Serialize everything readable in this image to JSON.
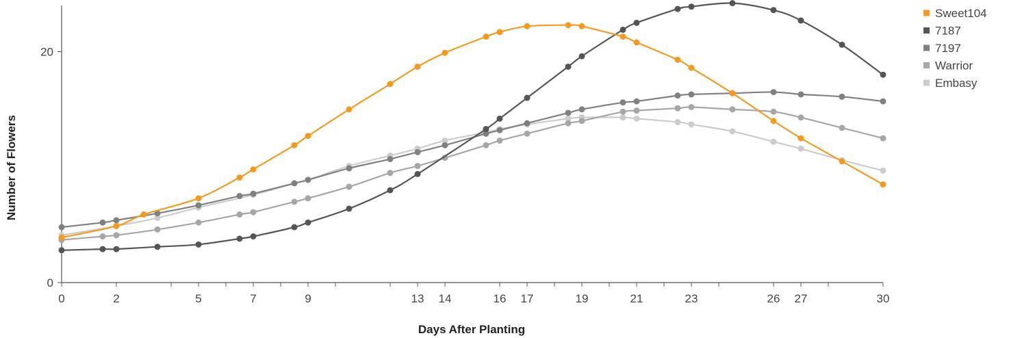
{
  "chart_data": {
    "type": "line",
    "title": "",
    "xlabel": "Days After Planting",
    "ylabel": "Number of Flowers",
    "xlim": [
      0,
      30
    ],
    "ylim": [
      0,
      24
    ],
    "x_tick_labels": [
      "0",
      "2",
      "5",
      "7",
      "9",
      "13",
      "14",
      "16",
      "17",
      "19",
      "21",
      "23",
      "26",
      "27",
      "30"
    ],
    "y_tick_labels": [
      "0",
      "20"
    ],
    "grid": false,
    "legend_position": "top-right",
    "x": [
      0,
      2,
      4,
      5,
      7,
      8,
      9,
      10,
      12,
      14,
      16,
      18,
      19,
      20,
      22,
      24,
      26,
      28,
      30
    ],
    "series": [
      {
        "name": "Sweet104",
        "color": "#f39a1f",
        "points": [
          [
            0,
            3.9
          ],
          [
            2,
            4.9
          ],
          [
            3,
            5.9
          ],
          [
            5,
            7.3
          ],
          [
            6.5,
            9.1
          ],
          [
            7,
            9.8
          ],
          [
            8.5,
            11.9
          ],
          [
            9,
            12.7
          ],
          [
            10.5,
            15.0
          ],
          [
            12,
            17.2
          ],
          [
            13,
            18.7
          ],
          [
            14,
            19.9
          ],
          [
            15.5,
            21.3
          ],
          [
            16,
            21.7
          ],
          [
            17,
            22.2
          ],
          [
            18.5,
            22.3
          ],
          [
            19,
            22.2
          ],
          [
            20.5,
            21.3
          ],
          [
            21,
            20.8
          ],
          [
            22.5,
            19.3
          ],
          [
            23,
            18.6
          ],
          [
            24.5,
            16.4
          ],
          [
            26,
            14.0
          ],
          [
            27,
            12.5
          ],
          [
            28.5,
            10.5
          ],
          [
            30,
            8.5
          ]
        ]
      },
      {
        "name": "7187",
        "color": "#555555",
        "points": [
          [
            0,
            2.8
          ],
          [
            1.5,
            2.9
          ],
          [
            2,
            2.9
          ],
          [
            3.5,
            3.1
          ],
          [
            5,
            3.3
          ],
          [
            6.5,
            3.8
          ],
          [
            7,
            4.0
          ],
          [
            8.5,
            4.8
          ],
          [
            9,
            5.2
          ],
          [
            10.5,
            6.4
          ],
          [
            12,
            8.0
          ],
          [
            13,
            9.4
          ],
          [
            15.5,
            13.3
          ],
          [
            16,
            14.2
          ],
          [
            17,
            16.0
          ],
          [
            18.5,
            18.7
          ],
          [
            19,
            19.6
          ],
          [
            20.5,
            21.9
          ],
          [
            21,
            22.5
          ],
          [
            22.5,
            23.7
          ],
          [
            23,
            23.9
          ],
          [
            24.5,
            24.2
          ],
          [
            26,
            23.6
          ],
          [
            27,
            22.7
          ],
          [
            28.5,
            20.6
          ],
          [
            30,
            18.0
          ]
        ]
      },
      {
        "name": "7197",
        "color": "#808080",
        "points": [
          [
            0,
            4.8
          ],
          [
            1.5,
            5.2
          ],
          [
            2,
            5.4
          ],
          [
            3.5,
            6.0
          ],
          [
            5,
            6.7
          ],
          [
            6.5,
            7.5
          ],
          [
            7,
            7.7
          ],
          [
            8.5,
            8.6
          ],
          [
            9,
            8.9
          ],
          [
            10.5,
            9.9
          ],
          [
            12,
            10.7
          ],
          [
            13,
            11.3
          ],
          [
            14,
            11.9
          ],
          [
            15.5,
            12.9
          ],
          [
            16,
            13.2
          ],
          [
            17,
            13.8
          ],
          [
            18.5,
            14.7
          ],
          [
            19,
            15.0
          ],
          [
            20.5,
            15.6
          ],
          [
            21,
            15.7
          ],
          [
            22.5,
            16.2
          ],
          [
            23,
            16.3
          ],
          [
            24.5,
            16.4
          ],
          [
            26,
            16.5
          ],
          [
            27,
            16.3
          ],
          [
            28.5,
            16.1
          ],
          [
            30,
            15.7
          ]
        ]
      },
      {
        "name": "Warrior",
        "color": "#a6a6a6",
        "points": [
          [
            0,
            3.7
          ],
          [
            1.5,
            4.0
          ],
          [
            2,
            4.1
          ],
          [
            3.5,
            4.6
          ],
          [
            5,
            5.2
          ],
          [
            6.5,
            5.9
          ],
          [
            7,
            6.1
          ],
          [
            8.5,
            7.0
          ],
          [
            9,
            7.3
          ],
          [
            10.5,
            8.3
          ],
          [
            12,
            9.5
          ],
          [
            13,
            10.1
          ],
          [
            14,
            10.8
          ],
          [
            15.5,
            11.9
          ],
          [
            16,
            12.3
          ],
          [
            17,
            12.9
          ],
          [
            18.5,
            13.8
          ],
          [
            19,
            14.0
          ],
          [
            20.5,
            14.8
          ],
          [
            21,
            14.9
          ],
          [
            22.5,
            15.1
          ],
          [
            23,
            15.2
          ],
          [
            24.5,
            15.0
          ],
          [
            26,
            14.8
          ],
          [
            27,
            14.3
          ],
          [
            28.5,
            13.4
          ],
          [
            30,
            12.5
          ]
        ]
      },
      {
        "name": "Embasy",
        "color": "#cccccc",
        "points": [
          [
            0,
            4.1
          ],
          [
            2,
            4.9
          ],
          [
            3.5,
            5.6
          ],
          [
            5,
            6.5
          ],
          [
            7,
            7.6
          ],
          [
            8.5,
            8.6
          ],
          [
            9,
            8.9
          ],
          [
            10.5,
            10.1
          ],
          [
            12,
            11.0
          ],
          [
            13,
            11.6
          ],
          [
            14,
            12.3
          ],
          [
            15.5,
            13.0
          ],
          [
            16,
            13.3
          ],
          [
            17,
            13.7
          ],
          [
            18.5,
            14.2
          ],
          [
            19,
            14.3
          ],
          [
            20.5,
            14.3
          ],
          [
            21,
            14.2
          ],
          [
            22.5,
            13.9
          ],
          [
            23,
            13.7
          ],
          [
            24.5,
            13.1
          ],
          [
            26,
            12.2
          ],
          [
            27,
            11.6
          ],
          [
            28.5,
            10.6
          ],
          [
            30,
            9.7
          ]
        ]
      }
    ]
  }
}
